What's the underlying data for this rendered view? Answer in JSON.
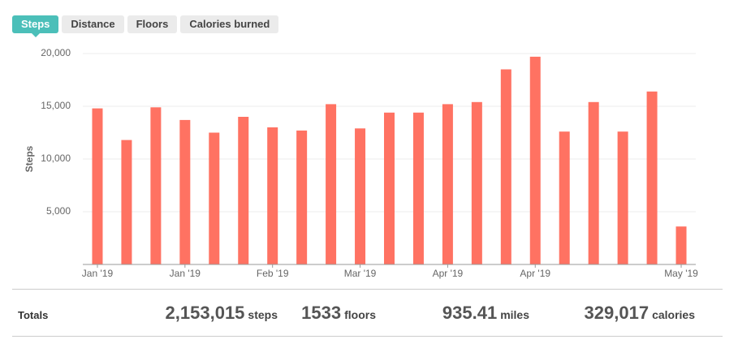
{
  "tabs": [
    {
      "label": "Steps",
      "active": true
    },
    {
      "label": "Distance",
      "active": false
    },
    {
      "label": "Floors",
      "active": false
    },
    {
      "label": "Calories burned",
      "active": false
    }
  ],
  "chart_data": {
    "type": "bar",
    "y_label": "Steps",
    "categories": [
      "Jan '19",
      null,
      null,
      "Jan '19",
      null,
      null,
      "Feb '19",
      null,
      null,
      "Mar '19",
      null,
      null,
      "Apr '19",
      null,
      null,
      "Apr '19",
      null,
      null,
      null,
      null,
      "May '19"
    ],
    "values": [
      14800,
      11800,
      14900,
      13700,
      12500,
      14000,
      13000,
      12700,
      15200,
      12900,
      14400,
      14400,
      15200,
      15400,
      18500,
      19700,
      12600,
      15400,
      12600,
      16400,
      3600
    ],
    "color": "#ff7262",
    "ylim": [
      0,
      20000
    ],
    "yticks": [
      {
        "value": 5000,
        "label": "5,000"
      },
      {
        "value": 10000,
        "label": "10,000"
      },
      {
        "value": 15000,
        "label": "15,000"
      },
      {
        "value": 20000,
        "label": "20,000"
      }
    ],
    "grid": true
  },
  "totals": {
    "label": "Totals",
    "items": [
      {
        "value": "2,153,015",
        "unit": "steps"
      },
      {
        "value": "1533",
        "unit": "floors"
      },
      {
        "value": "935.41",
        "unit": "miles"
      },
      {
        "value": "329,017",
        "unit": "calories"
      }
    ]
  }
}
